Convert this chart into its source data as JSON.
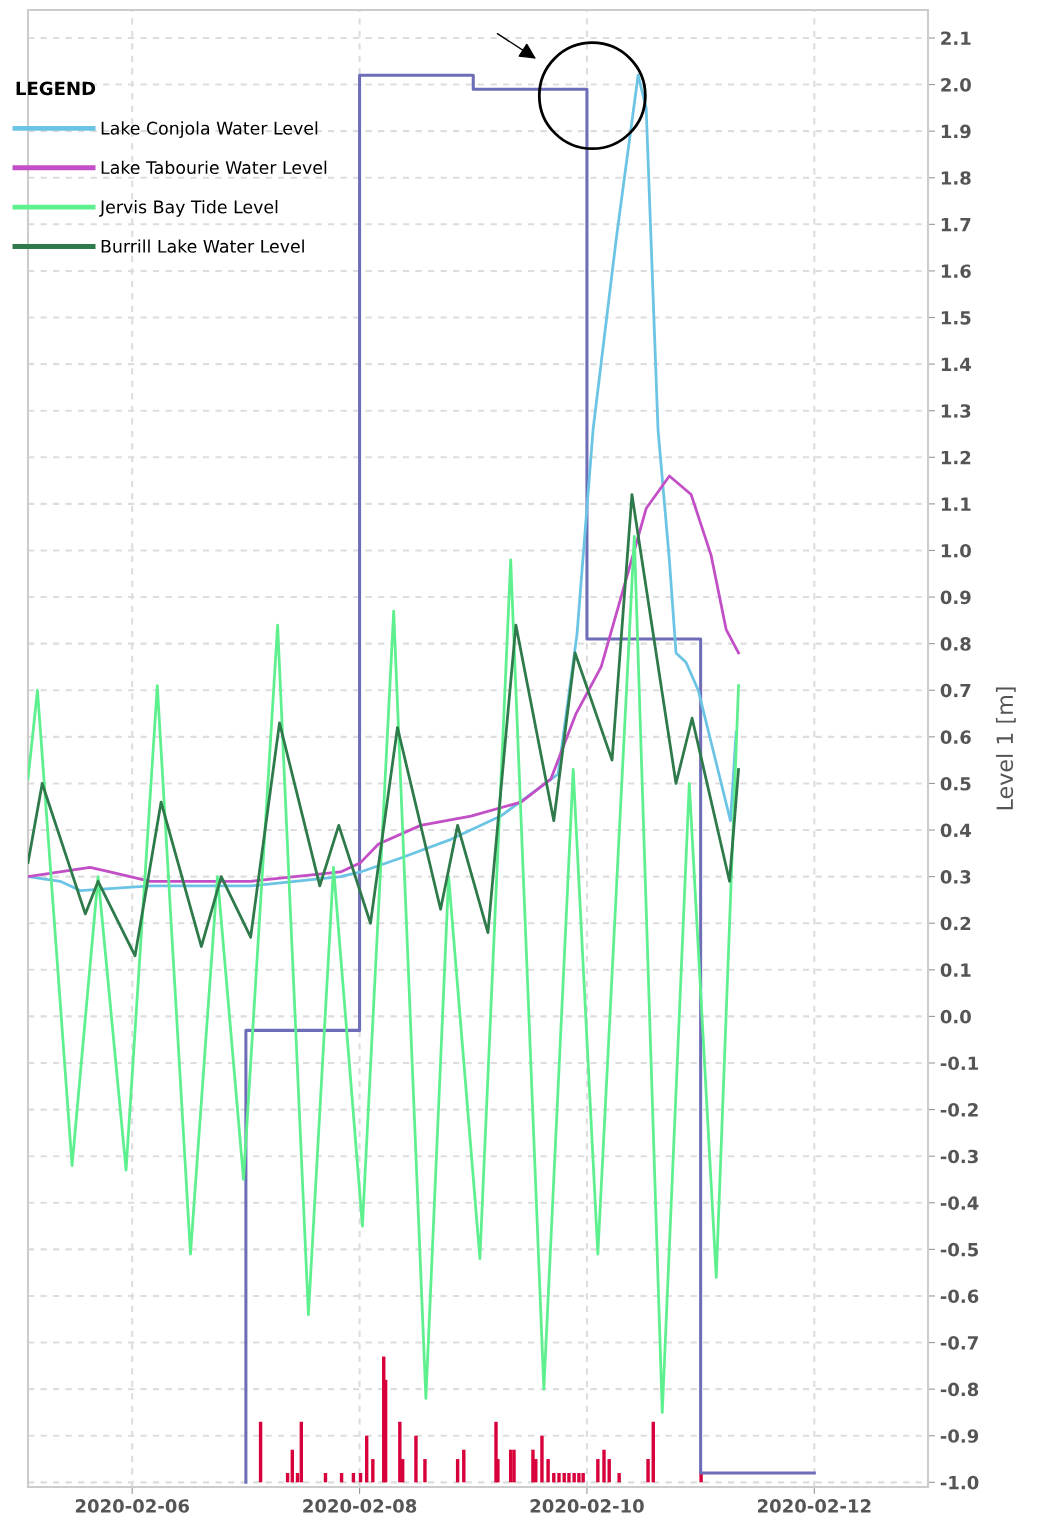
{
  "chart_data": {
    "type": "line",
    "ylabel": "Level 1 [m]",
    "legend_title": "LEGEND",
    "legend": "top left",
    "grid": true,
    "marker": "none",
    "line_style": "solid",
    "xlim": [
      "2020-02-05T02:00",
      "2020-02-13T00:00"
    ],
    "xticks": [
      {
        "value": "2020-02-06",
        "label": "2020-02-06"
      },
      {
        "value": "2020-02-08",
        "label": "2020-02-08"
      },
      {
        "value": "2020-02-10",
        "label": "2020-02-10"
      },
      {
        "value": "2020-02-12",
        "label": "2020-02-12"
      }
    ],
    "ylim": [
      -1.01,
      2.16
    ],
    "yticks": [
      {
        "value": 2.1,
        "label": "2.1"
      },
      {
        "value": 2.0,
        "label": "2.0"
      },
      {
        "value": 1.9,
        "label": "1.9"
      },
      {
        "value": 1.8,
        "label": "1.8"
      },
      {
        "value": 1.7,
        "label": "1.7"
      },
      {
        "value": 1.6,
        "label": "1.6"
      },
      {
        "value": 1.5,
        "label": "1.5"
      },
      {
        "value": 1.4,
        "label": "1.4"
      },
      {
        "value": 1.3,
        "label": "1.3"
      },
      {
        "value": 1.2,
        "label": "1.2"
      },
      {
        "value": 1.1,
        "label": "1.1"
      },
      {
        "value": 1.0,
        "label": "1.0"
      },
      {
        "value": 0.9,
        "label": "0.9"
      },
      {
        "value": 0.8,
        "label": "0.8"
      },
      {
        "value": 0.7,
        "label": "0.7"
      },
      {
        "value": 0.6,
        "label": "0.6"
      },
      {
        "value": 0.5,
        "label": "0.5"
      },
      {
        "value": 0.4,
        "label": "0.4"
      },
      {
        "value": 0.3,
        "label": "0.3"
      },
      {
        "value": 0.2,
        "label": "0.2"
      },
      {
        "value": 0.1,
        "label": "0.1"
      },
      {
        "value": 0.0,
        "label": "0.0"
      },
      {
        "value": -0.1,
        "label": "-0.1"
      },
      {
        "value": -0.2,
        "label": "-0.2"
      },
      {
        "value": -0.3,
        "label": "-0.3"
      },
      {
        "value": -0.4,
        "label": "-0.4"
      },
      {
        "value": -0.5,
        "label": "-0.5"
      },
      {
        "value": -0.6,
        "label": "-0.6"
      },
      {
        "value": -0.7,
        "label": "-0.7"
      },
      {
        "value": -0.8,
        "label": "-0.8"
      },
      {
        "value": -0.9,
        "label": "-0.9"
      },
      {
        "value": -1.0,
        "label": "-1.0"
      }
    ],
    "series": [
      {
        "name": "Lake Conjola Water Level",
        "color": "#6cc4e4",
        "x": [
          "2020-02-05T02:00",
          "2020-02-05T08:48",
          "2020-02-05T13:00",
          "2020-02-06T03:48",
          "2020-02-07T01:00",
          "2020-02-07T20:00",
          "2020-02-08T00:12",
          "2020-02-08T08:42",
          "2020-02-08T19:18",
          "2020-02-09T05:48",
          "2020-02-09T17:54",
          "2020-02-09T21:54",
          "2020-02-10T01:18",
          "2020-02-10T06:12",
          "2020-02-10T10:48",
          "2020-02-10T12:30",
          "2020-02-10T15:00",
          "2020-02-10T17:24",
          "2020-02-10T18:48",
          "2020-02-10T20:54",
          "2020-02-10T23:30",
          "2020-02-11T06:18",
          "2020-02-11T07:30"
        ],
        "values": [
          0.3,
          0.29,
          0.27,
          0.28,
          0.28,
          0.3,
          0.31,
          0.34,
          0.38,
          0.43,
          0.52,
          0.82,
          1.26,
          1.67,
          2.02,
          1.95,
          1.26,
          0.98,
          0.78,
          0.76,
          0.7,
          0.42,
          0.61
        ]
      },
      {
        "name": "Lake Tabourie Water Level",
        "color": "#c24fc6",
        "x": [
          "2020-02-05T02:00",
          "2020-02-05T15:06",
          "2020-02-05T19:18",
          "2020-02-06T03:48",
          "2020-02-07T01:00",
          "2020-02-07T20:00",
          "2020-02-08T00:12",
          "2020-02-08T04:00",
          "2020-02-08T12:54",
          "2020-02-08T23:30",
          "2020-02-09T10:06",
          "2020-02-09T16:24",
          "2020-02-09T21:42",
          "2020-02-10T03:00",
          "2020-02-10T07:12",
          "2020-02-10T12:30",
          "2020-02-10T17:24",
          "2020-02-10T22:00",
          "2020-02-11T02:12",
          "2020-02-11T05:24",
          "2020-02-11T08:00"
        ],
        "values": [
          0.3,
          0.32,
          0.31,
          0.29,
          0.29,
          0.31,
          0.33,
          0.37,
          0.41,
          0.43,
          0.46,
          0.51,
          0.65,
          0.75,
          0.9,
          1.09,
          1.16,
          1.12,
          0.99,
          0.83,
          0.78
        ]
      },
      {
        "name": "Jervis Bay Tide Level",
        "color": "#5ef08e",
        "x": [
          "2020-02-05T02:00",
          "2020-02-05T04:00",
          "2020-02-05T11:18",
          "2020-02-05T16:48",
          "2020-02-05T22:42",
          "2020-02-06T05:18",
          "2020-02-06T12:18",
          "2020-02-06T18:00",
          "2020-02-06T23:30",
          "2020-02-07T06:42",
          "2020-02-07T13:12",
          "2020-02-07T18:30",
          "2020-02-08T00:36",
          "2020-02-08T07:12",
          "2020-02-08T14:00",
          "2020-02-08T18:48",
          "2020-02-09T01:24",
          "2020-02-09T07:54",
          "2020-02-09T14:54",
          "2020-02-09T21:06",
          "2020-02-10T02:18",
          "2020-02-10T10:00",
          "2020-02-10T15:54",
          "2020-02-10T21:36",
          "2020-02-11T03:18",
          "2020-02-11T08:00"
        ],
        "values": [
          0.51,
          0.7,
          -0.32,
          0.3,
          -0.33,
          0.71,
          -0.51,
          0.3,
          -0.35,
          0.84,
          -0.64,
          0.32,
          -0.45,
          0.87,
          -0.82,
          0.3,
          -0.52,
          0.98,
          -0.8,
          0.53,
          -0.51,
          1.03,
          -0.85,
          0.5,
          -0.56,
          0.71
        ]
      },
      {
        "name": "Burrill Lake Water Level",
        "color": "#2e7a4a",
        "x": [
          "2020-02-05T02:00",
          "2020-02-05T05:00",
          "2020-02-05T14:06",
          "2020-02-05T16:48",
          "2020-02-06T00:36",
          "2020-02-06T06:06",
          "2020-02-06T14:36",
          "2020-02-06T18:48",
          "2020-02-07T01:00",
          "2020-02-07T07:06",
          "2020-02-07T15:36",
          "2020-02-07T19:36",
          "2020-02-08T02:18",
          "2020-02-08T08:00",
          "2020-02-08T17:06",
          "2020-02-08T20:42",
          "2020-02-09T03:06",
          "2020-02-09T09:00",
          "2020-02-09T17:00",
          "2020-02-09T21:30",
          "2020-02-10T05:18",
          "2020-02-10T09:30",
          "2020-02-10T18:48",
          "2020-02-10T22:12",
          "2020-02-11T06:06",
          "2020-02-11T08:00"
        ],
        "values": [
          0.33,
          0.5,
          0.22,
          0.29,
          0.13,
          0.46,
          0.15,
          0.3,
          0.17,
          0.63,
          0.28,
          0.41,
          0.2,
          0.62,
          0.23,
          0.41,
          0.18,
          0.84,
          0.42,
          0.78,
          0.55,
          1.12,
          0.5,
          0.64,
          0.29,
          0.53
        ]
      },
      {
        "color": "#6e6eb8",
        "type": "step",
        "x": [
          "2020-02-07",
          "2020-02-07",
          "2020-02-08",
          "2020-02-09",
          "2020-02-10",
          "2020-02-11",
          "2020-02-12"
        ],
        "values": [
          -1.0,
          -0.03,
          2.02,
          1.99,
          0.81,
          -0.98,
          -0.98
        ]
      },
      {
        "color": "#d8003a",
        "type": "bar",
        "x": [
          "2020-02-07T03:06",
          "2020-02-07T08:48",
          "2020-02-07T09:48",
          "2020-02-07T10:54",
          "2020-02-07T11:42",
          "2020-02-07T16:48",
          "2020-02-07T20:12",
          "2020-02-07T22:42",
          "2020-02-08T00:12",
          "2020-02-08T01:30",
          "2020-02-08T02:48",
          "2020-02-08T05:06",
          "2020-02-08T05:30",
          "2020-02-08T08:30",
          "2020-02-08T09:06",
          "2020-02-08T11:54",
          "2020-02-08T13:48",
          "2020-02-08T20:42",
          "2020-02-08T22:00",
          "2020-02-09T04:48",
          "2020-02-09T05:12",
          "2020-02-09T07:54",
          "2020-02-09T08:36",
          "2020-02-09T12:36",
          "2020-02-09T13:12",
          "2020-02-09T14:30",
          "2020-02-09T15:48",
          "2020-02-09T17:00",
          "2020-02-09T18:06",
          "2020-02-09T19:12",
          "2020-02-09T20:12",
          "2020-02-09T21:18",
          "2020-02-09T22:18",
          "2020-02-09T23:12",
          "2020-02-10T02:18",
          "2020-02-10T03:36",
          "2020-02-10T04:42",
          "2020-02-10T06:48",
          "2020-02-10T12:54",
          "2020-02-10T14:00",
          "2020-02-11T00:06"
        ],
        "base": [
          -1.0,
          -1.0,
          -1.0,
          -1.0,
          -1.0,
          -1.0,
          -1.0,
          -1.0,
          -1.0,
          -1.0,
          -1.0,
          -1.0,
          -1.0,
          -1.0,
          -1.0,
          -1.0,
          -1.0,
          -1.0,
          -1.0,
          -1.0,
          -1.0,
          -1.0,
          -1.0,
          -1.0,
          -1.0,
          -1.0,
          -1.0,
          -1.0,
          -1.0,
          -1.0,
          -1.0,
          -1.0,
          -1.0,
          -1.0,
          -1.0,
          -1.0,
          -1.0,
          -1.0,
          -1.0,
          -1.0,
          -1.0
        ],
        "values": [
          0.13,
          0.02,
          0.07,
          0.02,
          0.13,
          0.02,
          0.02,
          0.02,
          0.02,
          0.1,
          0.05,
          0.27,
          0.22,
          0.13,
          0.05,
          0.1,
          0.05,
          0.05,
          0.07,
          0.13,
          0.05,
          0.07,
          0.07,
          0.07,
          0.05,
          0.1,
          0.05,
          0.02,
          0.02,
          0.02,
          0.02,
          0.02,
          0.02,
          0.02,
          0.05,
          0.07,
          0.05,
          0.02,
          0.05,
          0.13,
          0.02
        ]
      }
    ]
  }
}
